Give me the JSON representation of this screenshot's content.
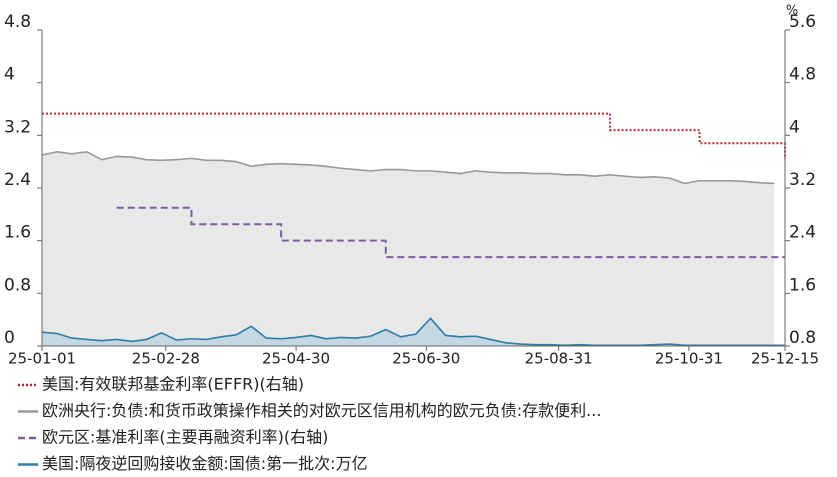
{
  "chart_data": {
    "type": "line",
    "x": [
      "25-01-01",
      "25-01-08",
      "25-01-15",
      "25-01-22",
      "25-01-29",
      "25-02-05",
      "25-02-12",
      "25-02-19",
      "25-02-26",
      "25-03-05",
      "25-03-12",
      "25-03-19",
      "25-03-26",
      "25-04-02",
      "25-04-09",
      "25-04-16",
      "25-04-23",
      "25-04-30",
      "25-05-07",
      "25-05-14",
      "25-05-21",
      "25-05-28",
      "25-06-04",
      "25-06-11",
      "25-06-18",
      "25-06-25",
      "25-07-02",
      "25-07-09",
      "25-07-16",
      "25-07-23",
      "25-07-30",
      "25-08-06",
      "25-08-13",
      "25-08-20",
      "25-08-27",
      "25-09-03",
      "25-09-10",
      "25-09-17",
      "25-09-24",
      "25-10-01",
      "25-10-08",
      "25-10-15",
      "25-10-22",
      "25-10-29",
      "25-11-05",
      "25-11-12",
      "25-11-19",
      "25-11-26",
      "25-12-03",
      "25-12-10",
      "25-12-15"
    ],
    "xlim": [
      "25-01-01",
      "25-12-15"
    ],
    "xticks": [
      "25-01-01",
      "25-02-28",
      "25-04-30",
      "25-06-30",
      "25-08-31",
      "25-10-31",
      "25-12-15"
    ],
    "ylim": [
      0,
      4.8
    ],
    "yticks": [
      0,
      0.8,
      1.6,
      2.4,
      3.2,
      4,
      4.8
    ],
    "y2lim": [
      0.8,
      5.6
    ],
    "y2ticks": [
      0.8,
      1.6,
      2.4,
      3.2,
      4,
      4.8,
      5.6
    ],
    "y2label": "%",
    "series": [
      {
        "name": "美国:有效联邦基金利率(EFFR)(右轴)",
        "color": "#c0243a",
        "dash": "dotted",
        "step": true,
        "axis": "y2",
        "values": [
          4.33,
          4.33,
          4.33,
          4.33,
          4.33,
          4.33,
          4.33,
          4.33,
          4.33,
          4.33,
          4.33,
          4.33,
          4.33,
          4.33,
          4.33,
          4.33,
          4.33,
          4.33,
          4.33,
          4.33,
          4.33,
          4.33,
          4.33,
          4.33,
          4.33,
          4.33,
          4.33,
          4.33,
          4.33,
          4.33,
          4.33,
          4.33,
          4.33,
          4.33,
          4.33,
          4.33,
          4.33,
          4.33,
          4.08,
          4.08,
          4.08,
          4.08,
          4.08,
          4.08,
          3.88,
          3.88,
          3.88,
          3.88,
          3.88,
          3.88,
          3.64
        ]
      },
      {
        "name": "欧洲央行:负债:和货币政策操作相关的对欧元区信用机构的欧元负债:存款便利...",
        "color": "#999999",
        "dash": "solid",
        "area": true,
        "fill_color": "#e8e8e8",
        "values": [
          2.9,
          2.95,
          2.92,
          2.95,
          2.83,
          2.88,
          2.87,
          2.83,
          2.82,
          2.83,
          2.85,
          2.82,
          2.82,
          2.8,
          2.73,
          2.76,
          2.77,
          2.76,
          2.75,
          2.73,
          2.7,
          2.68,
          2.66,
          2.68,
          2.68,
          2.66,
          2.66,
          2.64,
          2.62,
          2.66,
          2.64,
          2.63,
          2.63,
          2.62,
          2.62,
          2.6,
          2.6,
          2.58,
          2.6,
          2.58,
          2.56,
          2.57,
          2.55,
          2.47,
          2.51,
          2.51,
          2.51,
          2.5,
          2.48,
          2.47,
          null
        ]
      },
      {
        "name": "欧元区:基准利率(主要再融资利率)(右轴)",
        "color": "#7d5ba6",
        "dash": "dashed",
        "step": true,
        "axis": "y2",
        "values": [
          null,
          null,
          null,
          null,
          null,
          2.9,
          2.9,
          2.9,
          2.9,
          2.9,
          2.65,
          2.65,
          2.65,
          2.65,
          2.65,
          2.65,
          2.4,
          2.4,
          2.4,
          2.4,
          2.4,
          2.4,
          2.4,
          2.15,
          2.15,
          2.15,
          2.15,
          2.15,
          2.15,
          2.15,
          2.15,
          2.15,
          2.15,
          2.15,
          2.15,
          2.15,
          2.15,
          2.15,
          2.15,
          2.15,
          2.15,
          2.15,
          2.15,
          2.15,
          2.15,
          2.15,
          2.15,
          2.15,
          2.15,
          2.15,
          2.15
        ]
      },
      {
        "name": "美国:隔夜逆回购接收金额:国债:第一批次:万亿",
        "color": "#2f7ca6",
        "dash": "solid",
        "area": true,
        "fill_color": "#c3d8e3",
        "values": [
          0.21,
          0.19,
          0.12,
          0.1,
          0.08,
          0.1,
          0.07,
          0.1,
          0.2,
          0.09,
          0.11,
          0.1,
          0.14,
          0.17,
          0.3,
          0.12,
          0.11,
          0.13,
          0.16,
          0.11,
          0.13,
          0.12,
          0.15,
          0.25,
          0.14,
          0.18,
          0.42,
          0.16,
          0.14,
          0.15,
          0.1,
          0.05,
          0.03,
          0.02,
          0.02,
          0.01,
          0.02,
          0.01,
          0.01,
          0.01,
          0.01,
          0.02,
          0.03,
          0.01,
          0.01,
          0.01,
          0.01,
          0.01,
          0.01,
          0.01,
          0.01
        ]
      }
    ]
  }
}
